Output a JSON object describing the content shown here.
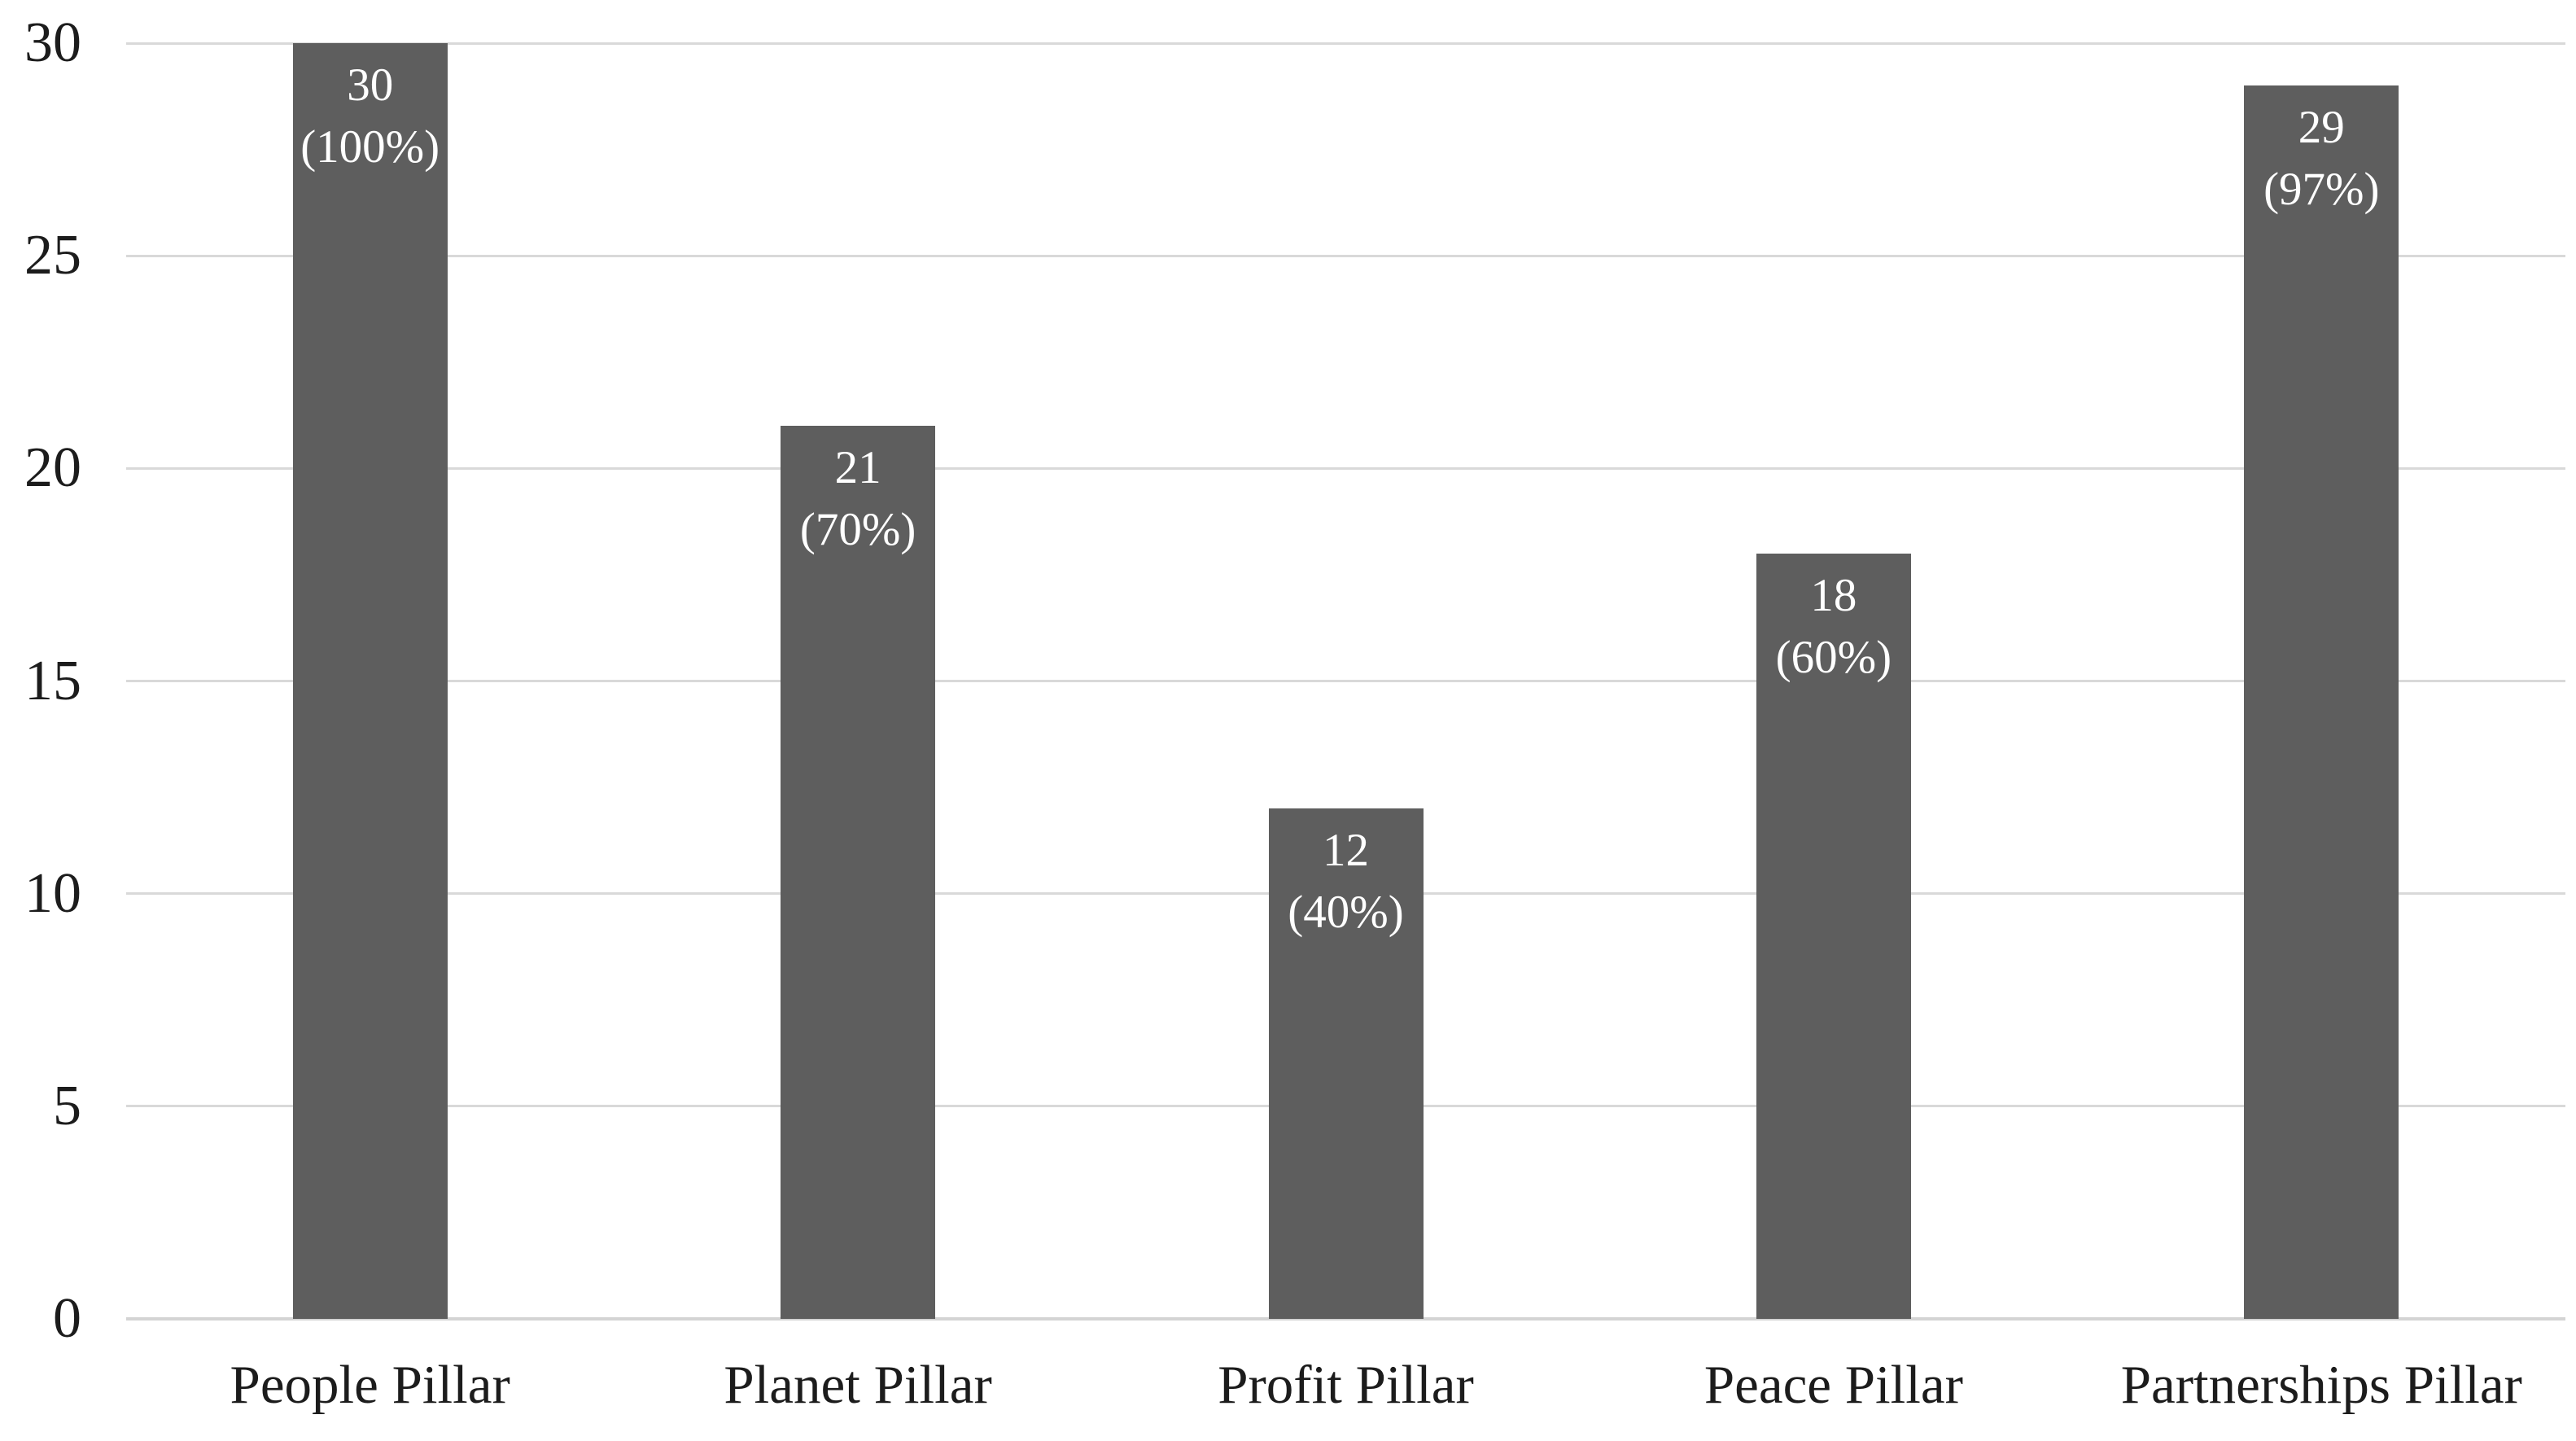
{
  "chart_data": {
    "type": "bar",
    "title": "",
    "subtitle": "",
    "xlabel": "",
    "ylabel": "",
    "categories": [
      "People Pillar",
      "Planet Pillar",
      "Profit Pillar",
      "Peace Pillar",
      "Partnerships Pillar"
    ],
    "values": [
      30,
      21,
      12,
      18,
      29
    ],
    "data_labels": [
      {
        "count": "30",
        "percent": "(100%)"
      },
      {
        "count": "21",
        "percent": "(70%)"
      },
      {
        "count": "12",
        "percent": "(40%)"
      },
      {
        "count": "18",
        "percent": "(60%)"
      },
      {
        "count": "29",
        "percent": "(97%)"
      }
    ],
    "y_ticks": [
      "0",
      "5",
      "10",
      "15",
      "20",
      "25",
      "30"
    ],
    "y_tick_values": [
      0,
      5,
      10,
      15,
      20,
      25,
      30
    ],
    "ylim": [
      0,
      30
    ],
    "grid": "horizontal",
    "legend": "none",
    "colors": {
      "bar": "#5E5E5E",
      "bar_label_text": "#FFFFFF",
      "gridline": "#D9D9D9",
      "axis_line": "#D4D4D4",
      "tick_label": "#1C1C1C",
      "category_label": "#1C1C1C",
      "background": "#FFFFFF"
    }
  }
}
